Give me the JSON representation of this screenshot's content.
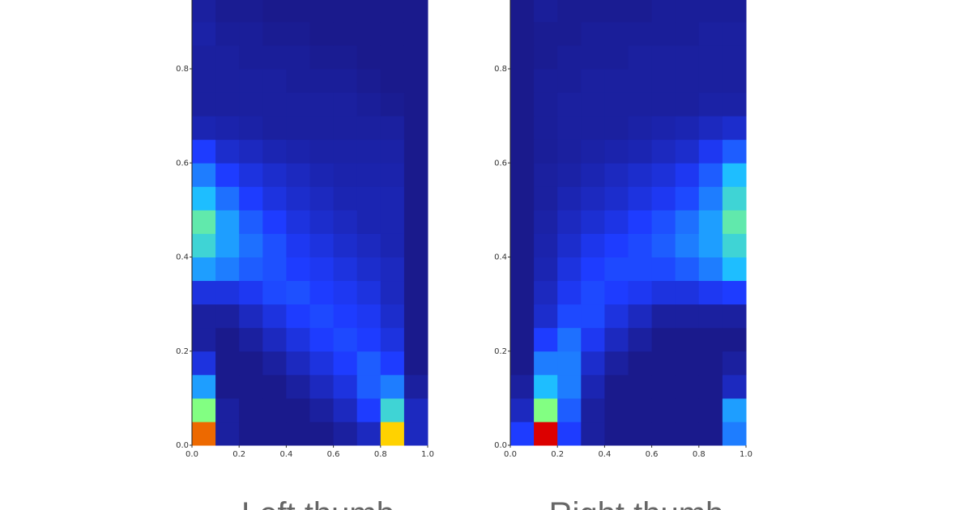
{
  "chart_data": [
    {
      "type": "heatmap",
      "title": "Left thumb",
      "xbins": [
        0,
        0.1,
        0.2,
        0.3,
        0.4,
        0.5,
        0.6,
        0.7,
        0.8,
        0.9,
        1.0
      ],
      "ybins": [
        0,
        0.05,
        0.1,
        0.15,
        0.2,
        0.25,
        0.3,
        0.35,
        0.4,
        0.45,
        0.5,
        0.55,
        0.6,
        0.65,
        0.7,
        0.75,
        0.8,
        0.85,
        0.9,
        0.95
      ],
      "values": [
        [
          0.8,
          0.15,
          0.12,
          0.12,
          0.12,
          0.12,
          0.15,
          0.2,
          0.75,
          0.2
        ],
        [
          0.65,
          0.15,
          0.12,
          0.12,
          0.12,
          0.15,
          0.2,
          0.3,
          0.55,
          0.2
        ],
        [
          0.45,
          0.12,
          0.12,
          0.12,
          0.15,
          0.2,
          0.25,
          0.35,
          0.4,
          0.15
        ],
        [
          0.25,
          0.12,
          0.12,
          0.15,
          0.2,
          0.25,
          0.3,
          0.35,
          0.3,
          0.12
        ],
        [
          0.15,
          0.12,
          0.15,
          0.2,
          0.25,
          0.3,
          0.32,
          0.3,
          0.25,
          0.12
        ],
        [
          0.15,
          0.15,
          0.2,
          0.25,
          0.3,
          0.32,
          0.3,
          0.28,
          0.22,
          0.12
        ],
        [
          0.25,
          0.25,
          0.28,
          0.32,
          0.33,
          0.3,
          0.28,
          0.25,
          0.2,
          0.12
        ],
        [
          0.45,
          0.4,
          0.35,
          0.33,
          0.3,
          0.28,
          0.25,
          0.22,
          0.2,
          0.12
        ],
        [
          0.55,
          0.45,
          0.38,
          0.33,
          0.28,
          0.25,
          0.22,
          0.2,
          0.18,
          0.12
        ],
        [
          0.6,
          0.45,
          0.35,
          0.3,
          0.25,
          0.22,
          0.2,
          0.18,
          0.18,
          0.12
        ],
        [
          0.5,
          0.38,
          0.3,
          0.25,
          0.22,
          0.2,
          0.18,
          0.18,
          0.18,
          0.12
        ],
        [
          0.4,
          0.3,
          0.25,
          0.22,
          0.2,
          0.18,
          0.17,
          0.17,
          0.17,
          0.12
        ],
        [
          0.3,
          0.22,
          0.2,
          0.18,
          0.17,
          0.16,
          0.16,
          0.16,
          0.16,
          0.12
        ],
        [
          0.18,
          0.17,
          0.16,
          0.15,
          0.15,
          0.15,
          0.15,
          0.15,
          0.15,
          0.12
        ],
        [
          0.15,
          0.15,
          0.15,
          0.15,
          0.15,
          0.15,
          0.15,
          0.14,
          0.13,
          0.12
        ],
        [
          0.15,
          0.15,
          0.15,
          0.15,
          0.14,
          0.14,
          0.14,
          0.13,
          0.12,
          0.12
        ],
        [
          0.15,
          0.15,
          0.14,
          0.14,
          0.14,
          0.13,
          0.13,
          0.12,
          0.12,
          0.12
        ],
        [
          0.16,
          0.14,
          0.14,
          0.13,
          0.13,
          0.12,
          0.12,
          0.12,
          0.12,
          0.12
        ],
        [
          0.15,
          0.13,
          0.13,
          0.12,
          0.12,
          0.12,
          0.12,
          0.12,
          0.12,
          0.12
        ]
      ],
      "xlim": [
        0,
        1.0
      ],
      "ylim": [
        0,
        0.95
      ],
      "xticks": [
        {
          "value": 0,
          "label": "0.0"
        },
        0.2,
        0.4,
        0.6,
        0.8,
        {
          "value": 1.0,
          "label": "1.0"
        }
      ],
      "yticks": [
        {
          "value": 0,
          "label": "0.0"
        },
        0.2,
        0.4,
        0.6,
        0.8
      ]
    },
    {
      "type": "heatmap",
      "title": "Right thumb",
      "xbins": [
        0,
        0.1,
        0.2,
        0.3,
        0.4,
        0.5,
        0.6,
        0.7,
        0.8,
        0.9,
        1.0
      ],
      "ybins": [
        0,
        0.05,
        0.1,
        0.15,
        0.2,
        0.25,
        0.3,
        0.35,
        0.4,
        0.45,
        0.5,
        0.55,
        0.6,
        0.65,
        0.7,
        0.75,
        0.8,
        0.85,
        0.9,
        0.95
      ],
      "values": [
        [
          0.3,
          0.85,
          0.3,
          0.15,
          0.12,
          0.12,
          0.12,
          0.12,
          0.12,
          0.4
        ],
        [
          0.2,
          0.65,
          0.35,
          0.15,
          0.12,
          0.12,
          0.12,
          0.12,
          0.12,
          0.45
        ],
        [
          0.15,
          0.5,
          0.4,
          0.18,
          0.12,
          0.12,
          0.12,
          0.12,
          0.12,
          0.2
        ],
        [
          0.12,
          0.4,
          0.4,
          0.22,
          0.15,
          0.12,
          0.12,
          0.12,
          0.12,
          0.15
        ],
        [
          0.12,
          0.3,
          0.38,
          0.28,
          0.2,
          0.15,
          0.12,
          0.12,
          0.12,
          0.12
        ],
        [
          0.12,
          0.22,
          0.32,
          0.32,
          0.25,
          0.2,
          0.15,
          0.15,
          0.15,
          0.15
        ],
        [
          0.12,
          0.2,
          0.28,
          0.32,
          0.3,
          0.28,
          0.25,
          0.25,
          0.28,
          0.3
        ],
        [
          0.12,
          0.18,
          0.25,
          0.3,
          0.32,
          0.32,
          0.32,
          0.35,
          0.4,
          0.5
        ],
        [
          0.12,
          0.17,
          0.22,
          0.27,
          0.3,
          0.32,
          0.35,
          0.4,
          0.45,
          0.55
        ],
        [
          0.12,
          0.16,
          0.2,
          0.23,
          0.26,
          0.3,
          0.33,
          0.38,
          0.45,
          0.6
        ],
        [
          0.12,
          0.15,
          0.18,
          0.2,
          0.22,
          0.25,
          0.28,
          0.32,
          0.4,
          0.55
        ],
        [
          0.12,
          0.15,
          0.16,
          0.18,
          0.2,
          0.22,
          0.24,
          0.28,
          0.35,
          0.5
        ],
        [
          0.12,
          0.14,
          0.15,
          0.16,
          0.17,
          0.18,
          0.2,
          0.22,
          0.28,
          0.35
        ],
        [
          0.12,
          0.14,
          0.15,
          0.15,
          0.15,
          0.16,
          0.17,
          0.18,
          0.2,
          0.22
        ],
        [
          0.12,
          0.14,
          0.15,
          0.15,
          0.15,
          0.15,
          0.15,
          0.15,
          0.16,
          0.16
        ],
        [
          0.12,
          0.14,
          0.14,
          0.15,
          0.15,
          0.15,
          0.15,
          0.15,
          0.15,
          0.15
        ],
        [
          0.12,
          0.13,
          0.14,
          0.14,
          0.14,
          0.15,
          0.15,
          0.15,
          0.15,
          0.15
        ],
        [
          0.12,
          0.13,
          0.13,
          0.14,
          0.14,
          0.14,
          0.14,
          0.14,
          0.15,
          0.15
        ],
        [
          0.12,
          0.14,
          0.13,
          0.13,
          0.13,
          0.13,
          0.14,
          0.14,
          0.14,
          0.14
        ]
      ],
      "xlim": [
        0,
        1.0
      ],
      "ylim": [
        0,
        0.95
      ],
      "xticks": [
        {
          "value": 0,
          "label": "0.0"
        },
        0.2,
        0.4,
        0.6,
        0.8,
        {
          "value": 1.0,
          "label": "1.0"
        }
      ],
      "yticks": [
        {
          "value": 0,
          "label": "0.0"
        },
        0.2,
        0.4,
        0.6,
        0.8
      ]
    }
  ]
}
